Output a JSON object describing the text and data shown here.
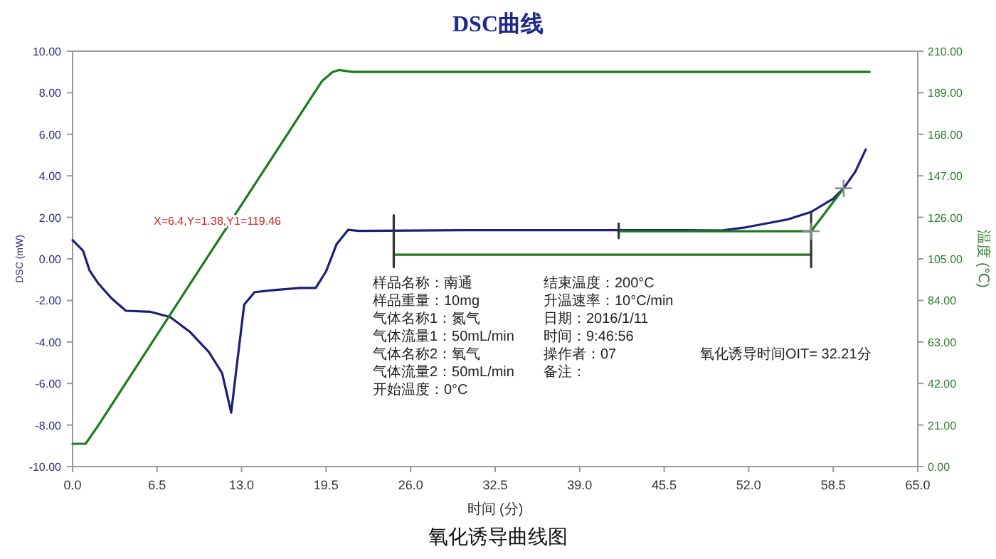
{
  "chart_data": {
    "type": "line",
    "title": "DSC曲线",
    "xlabel": "时间 (分)",
    "ylabel": "DSC (mW)",
    "y2label": "温度 (℃)",
    "xlim": [
      0,
      65
    ],
    "xticks": [
      {
        "value": 0,
        "label": "0.0"
      },
      {
        "value": 6.5,
        "label": "6.5"
      },
      {
        "value": 13,
        "label": "13.0"
      },
      {
        "value": 19.5,
        "label": "19.5"
      },
      {
        "value": 26,
        "label": "26.0"
      },
      {
        "value": 32.5,
        "label": "32.5"
      },
      {
        "value": 39,
        "label": "39.0"
      },
      {
        "value": 45.5,
        "label": "45.5"
      },
      {
        "value": 52,
        "label": "52.0"
      },
      {
        "value": 58.5,
        "label": "58.5"
      },
      {
        "value": 65,
        "label": "65.0"
      }
    ],
    "ylim": [
      -10,
      10
    ],
    "yticks": [
      {
        "value": -10,
        "label": "-10.00"
      },
      {
        "value": -8,
        "label": "-8.00"
      },
      {
        "value": -6,
        "label": "-6.00"
      },
      {
        "value": -4,
        "label": "-4.00"
      },
      {
        "value": -2,
        "label": "-2.00"
      },
      {
        "value": 0,
        "label": "0.00"
      },
      {
        "value": 2,
        "label": "2.00"
      },
      {
        "value": 4,
        "label": "4.00"
      },
      {
        "value": 6,
        "label": "6.00"
      },
      {
        "value": 8,
        "label": "8.00"
      },
      {
        "value": 10,
        "label": "10.00"
      }
    ],
    "y2lim": [
      0,
      210
    ],
    "y2ticks": [
      {
        "value": 0,
        "label": "0.00"
      },
      {
        "value": 21,
        "label": "21.00"
      },
      {
        "value": 42,
        "label": "42.00"
      },
      {
        "value": 63,
        "label": "63.00"
      },
      {
        "value": 84,
        "label": "84.00"
      },
      {
        "value": 105,
        "label": "105.00"
      },
      {
        "value": 126,
        "label": "126.00"
      },
      {
        "value": 147,
        "label": "147.00"
      },
      {
        "value": 168,
        "label": "168.00"
      },
      {
        "value": 189,
        "label": "189.00"
      },
      {
        "value": 210,
        "label": "210.00"
      }
    ],
    "grid": false,
    "series": [
      {
        "type": "line",
        "color": "#1a1f7a",
        "x": [
          0,
          0.8,
          1.3,
          2,
          3,
          4.1,
          6,
          7.5,
          9,
          10.5,
          11,
          11.5,
          12.2,
          12.6,
          13.2,
          14,
          15.5,
          17.5,
          18.7,
          19.5,
          20.3,
          21.2,
          22,
          30,
          40,
          47,
          49.9,
          51.6,
          55,
          56.8,
          58.5,
          59.3,
          60.2,
          61
        ],
        "values": [
          0.9,
          0.4,
          -0.55,
          -1.2,
          -1.9,
          -2.5,
          -2.55,
          -2.8,
          -3.5,
          -4.5,
          -5,
          -5.5,
          -7.4,
          -5.3,
          -2.2,
          -1.6,
          -1.5,
          -1.4,
          -1.4,
          -0.6,
          0.7,
          1.4,
          1.35,
          1.38,
          1.38,
          1.38,
          1.37,
          1.5,
          1.9,
          2.26,
          2.9,
          3.4,
          4.2,
          5.27
        ]
      },
      {
        "type": "line",
        "axis": "y2",
        "color": "#1e7a1e",
        "x": [
          0,
          1,
          2,
          9,
          18.5,
          19.2,
          20,
          20.5,
          21.5,
          61.3
        ],
        "values": [
          11.5,
          11.5,
          21,
          92,
          188,
          195,
          199.5,
          200.5,
          199.5,
          199.5
        ]
      },
      {
        "type": "line",
        "color": "#1e7a1e",
        "x": [
          24.7,
          56.8
        ],
        "values": [
          0.2,
          0.2
        ]
      },
      {
        "type": "line",
        "color": "#1e7a1e",
        "x": [
          42,
          56.8
        ],
        "values": [
          1.33,
          1.33
        ]
      },
      {
        "type": "line",
        "color": "#1e7a1e",
        "x": [
          56.8,
          59.3
        ],
        "values": [
          1.33,
          3.4
        ]
      },
      {
        "type": "line",
        "color": "#333333",
        "x": [
          24.7,
          24.7
        ],
        "values": [
          2.1,
          -0.4
        ]
      },
      {
        "type": "line",
        "color": "#333333",
        "x": [
          56.8,
          56.8
        ],
        "values": [
          2.2,
          -0.4
        ]
      },
      {
        "type": "line",
        "color": "#333333",
        "x": [
          42,
          42
        ],
        "values": [
          1.7,
          1.0
        ]
      },
      {
        "type": "scatter",
        "marker": "cross",
        "color": "#888888",
        "x": [
          56.8,
          59.3
        ],
        "values": [
          1.33,
          3.4
        ]
      }
    ],
    "annotations": [
      "X=6.4,Y=1.38,Y1=119.46",
      "样品名称：南通",
      "样品重量：10mg",
      "气体名称1：氮气",
      "气体流量1：50mL/min",
      "气体名称2：氧气",
      "气体流量2：50mL/min",
      "开始温度：0°C",
      "结束温度：200°C",
      "升温速率：10°C/min",
      "日期：2016/1/11",
      "时间：9:46:56",
      "操作者：07",
      "备注：",
      "氧化诱导时间OIT= 32.21分",
      "氧化诱导曲线图"
    ]
  }
}
